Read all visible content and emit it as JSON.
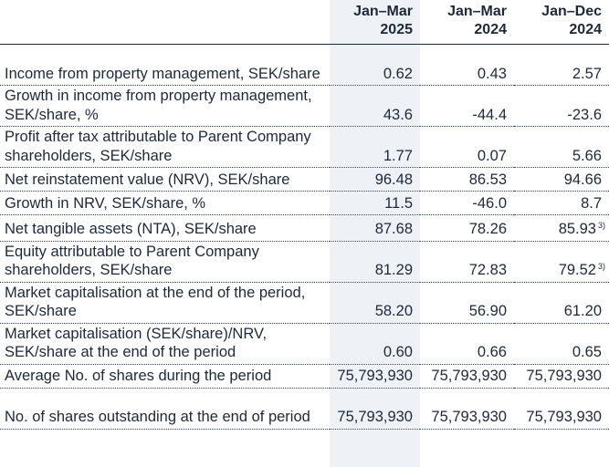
{
  "columns": [
    {
      "line1": "Jan–Mar",
      "line2": "2025"
    },
    {
      "line1": "Jan–Mar",
      "line2": "2024"
    },
    {
      "line1": "Jan–Dec",
      "line2": "2024"
    }
  ],
  "rows": [
    {
      "label": "Income from property management, SEK/share",
      "values": [
        "0.62",
        "0.43",
        "2.57"
      ]
    },
    {
      "label": "Growth in income from property management, SEK/share, %",
      "values": [
        "43.6",
        "-44.4",
        "-23.6"
      ]
    },
    {
      "label": "Profit after tax attributable to Parent Company shareholders, SEK/share",
      "values": [
        "1.77",
        "0.07",
        "5.66"
      ]
    },
    {
      "label": "Net reinstatement value (NRV), SEK/share",
      "values": [
        "96.48",
        "86.53",
        "94.66"
      ]
    },
    {
      "label": "Growth in NRV, SEK/share, %",
      "values": [
        "11.5",
        "-46.0",
        "8.7"
      ]
    },
    {
      "label": "Net tangible assets (NTA), SEK/share",
      "values": [
        "87.68",
        "78.26",
        "85.93"
      ],
      "footnote": "3)"
    },
    {
      "label": "Equity attributable to Parent Company shareholders, SEK/share",
      "values": [
        "81.29",
        "72.83",
        "79.52"
      ],
      "footnote": "3)"
    },
    {
      "label": "Market capitalisation at the end of the period, SEK/share",
      "values": [
        "58.20",
        "56.90",
        "61.20"
      ]
    },
    {
      "label": "Market capitalisation (SEK/share)/NRV, SEK/share at the end of the period",
      "values": [
        "0.60",
        "0.66",
        "0.65"
      ]
    },
    {
      "label": "Average No. of shares during the period",
      "values": [
        "75,793,930",
        "75,793,930",
        "75,793,930"
      ]
    },
    {
      "label": "No. of shares outstanding at the end of period",
      "values": [
        "75,793,930",
        "75,793,930",
        "75,793,930"
      ]
    }
  ]
}
